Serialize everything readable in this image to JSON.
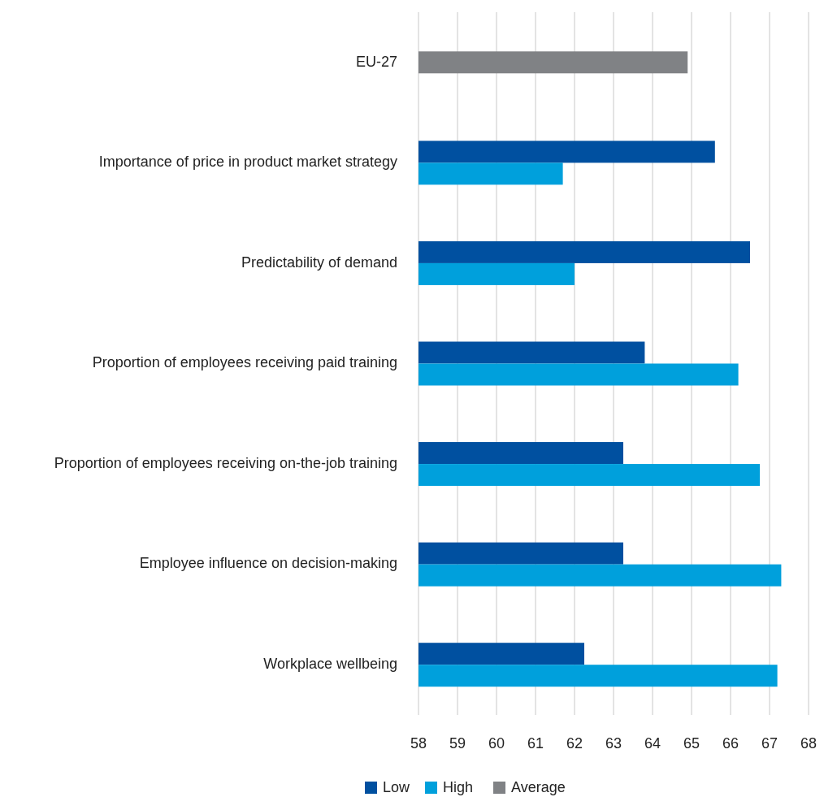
{
  "chart_data": {
    "type": "bar",
    "orientation": "horizontal",
    "categories": [
      "EU-27",
      "Importance of price in product market strategy",
      "Predictability of demand",
      "Proportion of employees receiving paid training",
      "Proportion of employees receiving on-the-job training",
      "Employee influence on decision-making",
      "Workplace wellbeing"
    ],
    "series": [
      {
        "name": "Low",
        "color": "#0050a0",
        "values": [
          null,
          65.6,
          66.5,
          63.8,
          63.25,
          63.25,
          62.25
        ]
      },
      {
        "name": "High",
        "color": "#00a0dc",
        "values": [
          null,
          61.7,
          62.0,
          66.2,
          66.75,
          67.3,
          67.2
        ]
      },
      {
        "name": "Average",
        "color": "#808285",
        "values": [
          64.9,
          null,
          null,
          null,
          null,
          null,
          null
        ]
      }
    ],
    "xlim": [
      58,
      68
    ],
    "xticks": [
      58,
      59,
      60,
      61,
      62,
      63,
      64,
      65,
      66,
      67,
      68
    ],
    "grid": true,
    "legend": "bottom"
  }
}
